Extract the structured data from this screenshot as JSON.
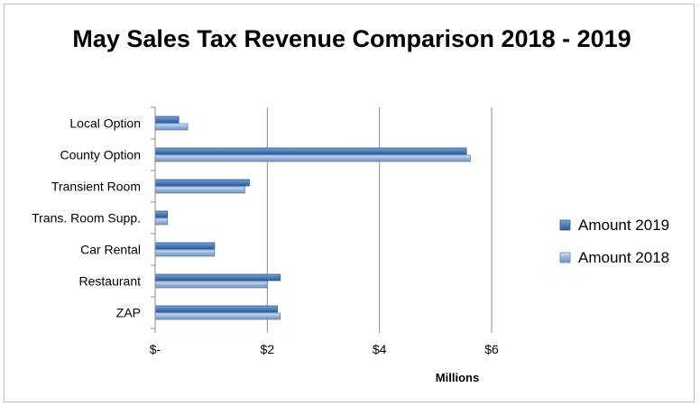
{
  "chart_data": {
    "type": "bar",
    "orientation": "horizontal",
    "title": "May Sales Tax Revenue Comparison 2018 - 2019",
    "xlabel": "Millions",
    "ylabel": "",
    "categories": [
      "Local Option",
      "County Option",
      "Transient Room",
      "Trans. Room Supp.",
      "Car Rental",
      "Restaurant",
      "ZAP"
    ],
    "series": [
      {
        "name": "Amount 2019",
        "values": [
          0.42,
          5.55,
          1.68,
          0.22,
          1.06,
          2.23,
          2.18
        ],
        "color": "#4f81bd"
      },
      {
        "name": "Amount 2018",
        "values": [
          0.58,
          5.62,
          1.6,
          0.22,
          1.06,
          2.0,
          2.23
        ],
        "color": "#95b3d7"
      }
    ],
    "xlim": [
      0,
      6
    ],
    "xticks": [
      {
        "value": 0,
        "label": "$-"
      },
      {
        "value": 2,
        "label": "$2"
      },
      {
        "value": 4,
        "label": "$4"
      },
      {
        "value": 6,
        "label": "$6"
      }
    ],
    "grid": true,
    "legend": "right"
  }
}
